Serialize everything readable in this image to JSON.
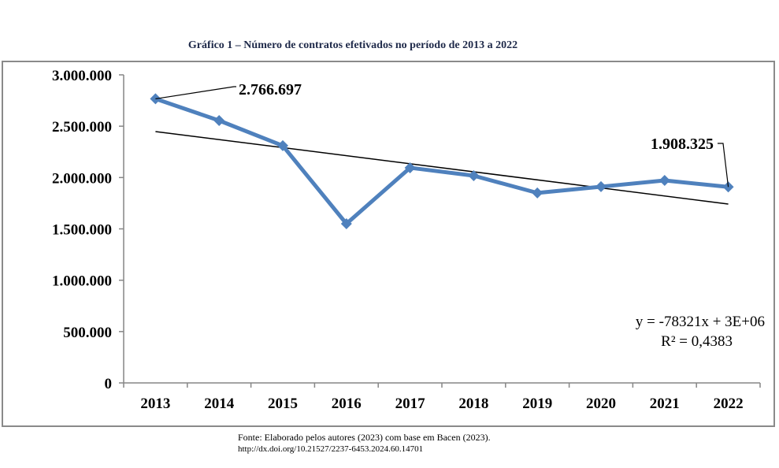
{
  "chart_data": {
    "type": "line",
    "title": "Gráfico 1 – Número de contratos efetivados no período de 2013 a 2022",
    "xlabel": "",
    "ylabel": "",
    "categories": [
      "2013",
      "2014",
      "2015",
      "2016",
      "2017",
      "2018",
      "2019",
      "2020",
      "2021",
      "2022"
    ],
    "series": [
      {
        "name": "Contratos efetivados",
        "color": "#4f81bd",
        "values": [
          2766697,
          2555000,
          2310000,
          1550000,
          2095000,
          2018000,
          1850000,
          1911000,
          1972000,
          1908325
        ]
      }
    ],
    "ylim": [
      0,
      3000000
    ],
    "yticks": [
      0,
      500000,
      1000000,
      1500000,
      2000000,
      2500000,
      3000000
    ],
    "ytick_labels": [
      "0",
      "500.000",
      "1.000.000",
      "1.500.000",
      "2.000.000",
      "2.500.000",
      "3.000.000"
    ],
    "annotations": [
      {
        "category": "2013",
        "text": "2.766.697"
      },
      {
        "category": "2022",
        "text": "1.908.325"
      }
    ],
    "trendline": {
      "type": "linear",
      "equation": "y = -78321x + 3E+06",
      "r2": "R² = 0,4383",
      "start": 2448000,
      "end": 1742000
    },
    "grid": false,
    "legend": "none"
  },
  "source": {
    "line1": "Fonte: Elaborado pelos autores (2023) com base em Bacen (2023).",
    "line2": "http://dx.doi.org/10.21527/2237-6453.2024.60.14701"
  }
}
